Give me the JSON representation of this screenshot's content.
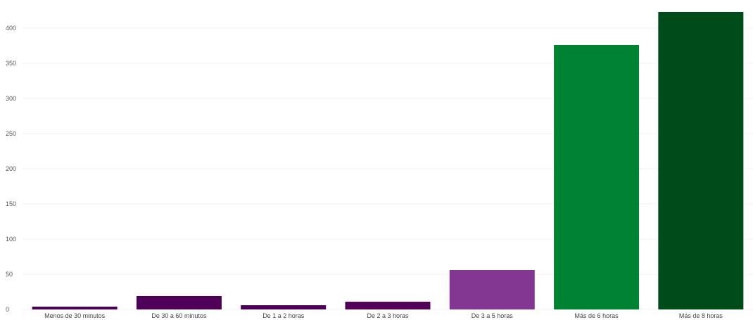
{
  "chart_data": {
    "type": "bar",
    "categories": [
      "Menos de 30 minutos",
      "De 30 a 60 minutos",
      "De 1 a 2 horas",
      "De 2 a 3 horas",
      "De 3 a 5 horas",
      "Más de 6 horas",
      "Más de 8 horas"
    ],
    "values": [
      4,
      19,
      6,
      11,
      56,
      376,
      423
    ],
    "colors": [
      "#4a0055",
      "#4f0057",
      "#4a0055",
      "#520058",
      "#843791",
      "#008233",
      "#004b1a"
    ],
    "yticks": [
      0,
      50,
      100,
      150,
      200,
      250,
      300,
      350,
      400
    ],
    "ylim": [
      0,
      430
    ],
    "grid": true,
    "title": "",
    "xlabel": "",
    "ylabel": ""
  }
}
